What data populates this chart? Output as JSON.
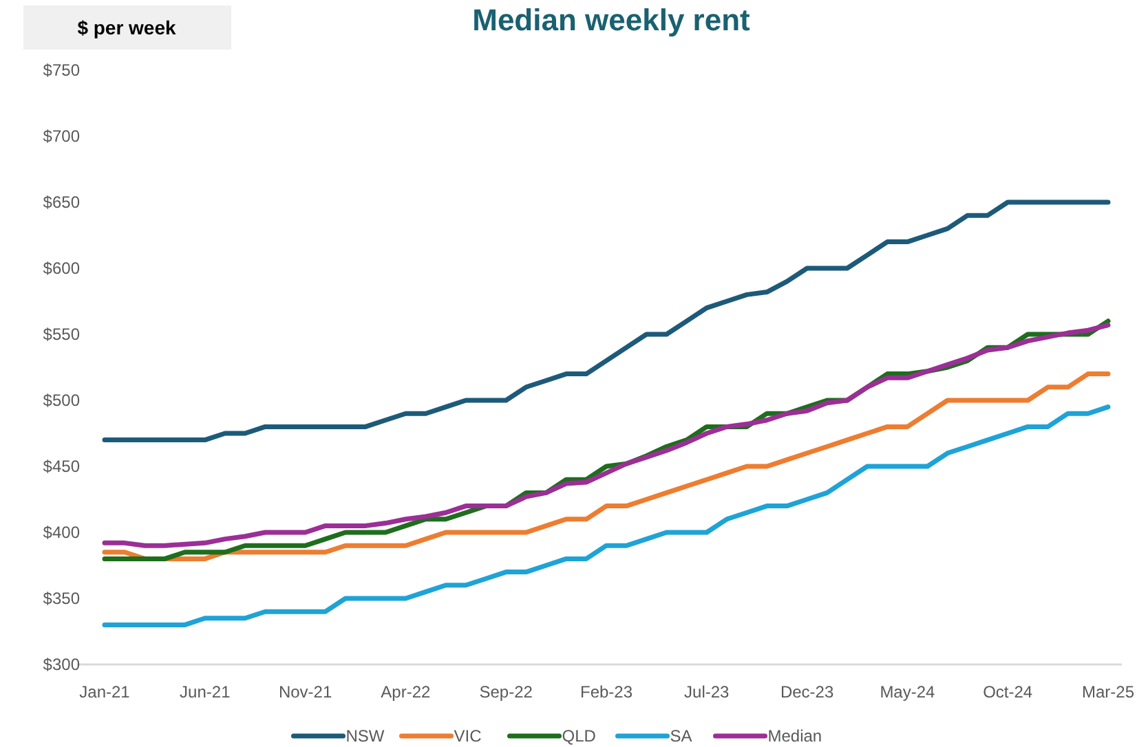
{
  "chart_data": {
    "type": "line",
    "title": "Median weekly rent",
    "ylabel": "$ per week",
    "categories": [
      "Jan-21",
      null,
      null,
      null,
      null,
      "Jun-21",
      null,
      null,
      null,
      null,
      "Nov-21",
      null,
      null,
      null,
      null,
      "Apr-22",
      null,
      null,
      null,
      null,
      "Sep-22",
      null,
      null,
      null,
      null,
      "Feb-23",
      null,
      null,
      null,
      null,
      "Jul-23",
      null,
      null,
      null,
      null,
      "Dec-23",
      null,
      null,
      null,
      null,
      "May-24",
      null,
      null,
      null,
      null,
      "Oct-24",
      null,
      null,
      null,
      null,
      "Mar-25"
    ],
    "ylim": [
      300,
      750
    ],
    "yticks": [
      {
        "value": 300,
        "label": "$300"
      },
      {
        "value": 350,
        "label": "$350"
      },
      {
        "value": 400,
        "label": "$400"
      },
      {
        "value": 450,
        "label": "$450"
      },
      {
        "value": 500,
        "label": "$500"
      },
      {
        "value": 550,
        "label": "$550"
      },
      {
        "value": 600,
        "label": "$600"
      },
      {
        "value": 650,
        "label": "$650"
      },
      {
        "value": 700,
        "label": "$700"
      },
      {
        "value": 750,
        "label": "$750"
      }
    ],
    "grid": false,
    "legend": "bottom",
    "line_style": "solid",
    "series": [
      {
        "name": "NSW",
        "color": "#1d5a7a",
        "values": [
          470,
          470,
          470,
          470,
          470,
          470,
          475,
          475,
          480,
          480,
          480,
          480,
          480,
          480,
          485,
          490,
          490,
          495,
          500,
          500,
          500,
          510,
          515,
          520,
          520,
          530,
          540,
          550,
          550,
          560,
          570,
          575,
          580,
          582,
          590,
          600,
          600,
          600,
          610,
          620,
          620,
          625,
          630,
          640,
          640,
          650,
          650,
          650,
          650,
          650,
          650
        ]
      },
      {
        "name": "VIC",
        "color": "#ed7d31",
        "values": [
          385,
          385,
          380,
          380,
          380,
          380,
          385,
          385,
          385,
          385,
          385,
          385,
          390,
          390,
          390,
          390,
          395,
          400,
          400,
          400,
          400,
          400,
          405,
          410,
          410,
          420,
          420,
          425,
          430,
          435,
          440,
          445,
          450,
          450,
          455,
          460,
          465,
          470,
          475,
          480,
          480,
          490,
          500,
          500,
          500,
          500,
          500,
          510,
          510,
          520,
          520
        ]
      },
      {
        "name": "QLD",
        "color": "#1e6e1e",
        "values": [
          380,
          380,
          380,
          380,
          385,
          385,
          385,
          390,
          390,
          390,
          390,
          395,
          400,
          400,
          400,
          405,
          410,
          410,
          415,
          420,
          420,
          430,
          430,
          440,
          440,
          450,
          452,
          458,
          465,
          470,
          480,
          480,
          480,
          490,
          490,
          495,
          500,
          500,
          510,
          520,
          520,
          522,
          525,
          530,
          540,
          540,
          550,
          550,
          550,
          550,
          560
        ]
      },
      {
        "name": "SA",
        "color": "#1fa3d6",
        "values": [
          330,
          330,
          330,
          330,
          330,
          335,
          335,
          335,
          340,
          340,
          340,
          340,
          350,
          350,
          350,
          350,
          355,
          360,
          360,
          365,
          370,
          370,
          375,
          380,
          380,
          390,
          390,
          395,
          400,
          400,
          400,
          410,
          415,
          420,
          420,
          425,
          430,
          440,
          450,
          450,
          450,
          450,
          460,
          465,
          470,
          475,
          480,
          480,
          490,
          490,
          495
        ]
      },
      {
        "name": "Median",
        "color": "#9b2f96",
        "values": [
          392,
          392,
          390,
          390,
          391,
          392,
          395,
          397,
          400,
          400,
          400,
          405,
          405,
          405,
          407,
          410,
          412,
          415,
          420,
          420,
          420,
          427,
          430,
          437,
          438,
          445,
          452,
          457,
          462,
          468,
          475,
          480,
          482,
          485,
          490,
          492,
          498,
          500,
          510,
          517,
          517,
          522,
          527,
          532,
          538,
          540,
          545,
          548,
          551,
          553,
          557
        ]
      }
    ]
  }
}
